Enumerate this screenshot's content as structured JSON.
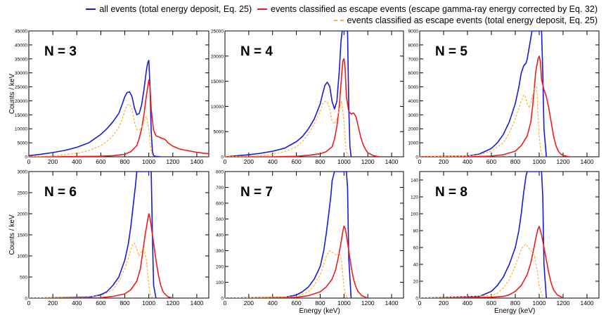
{
  "legend": {
    "all": {
      "label": "all events (total energy deposit, Eq. 25)",
      "color": "#1a1adb",
      "style": "solid"
    },
    "escape_corrected": {
      "label": "events classified as escape events (escape gamma-ray energy corrected by Eq. 32)",
      "color": "#ee1c1c",
      "style": "solid"
    },
    "escape_total": {
      "label": "events classified as escape events (total energy deposit, Eq. 25)",
      "color": "#ffb13b",
      "style": "dashed"
    }
  },
  "chart_data": [
    {
      "type": "line",
      "title": "N = 3",
      "xlabel": "",
      "ylabel": "Counts / keV",
      "xlim": [
        0,
        1500
      ],
      "ylim": [
        0,
        45000
      ],
      "xticks": [
        0,
        200,
        400,
        600,
        800,
        1000,
        1200,
        1400
      ],
      "yticks": [
        0,
        5000,
        10000,
        15000,
        20000,
        25000,
        30000,
        35000,
        40000,
        45000
      ],
      "series": [
        {
          "name": "all",
          "x": [
            0,
            100,
            200,
            300,
            400,
            500,
            600,
            650,
            700,
            750,
            780,
            800,
            820,
            840,
            860,
            880,
            900,
            920,
            940,
            960,
            980,
            990,
            1000,
            1010,
            1020,
            1030,
            1040,
            1060,
            1100
          ],
          "y": [
            400,
            900,
            1500,
            2300,
            3400,
            5000,
            8000,
            10000,
            12500,
            15500,
            19000,
            21500,
            23000,
            23200,
            21500,
            17500,
            15000,
            15500,
            18500,
            24000,
            31000,
            33500,
            34500,
            25000,
            9000,
            2000,
            400,
            100,
            0
          ]
        },
        {
          "name": "escape_corrected",
          "x": [
            0,
            200,
            400,
            600,
            700,
            800,
            850,
            900,
            920,
            940,
            960,
            980,
            1000,
            1010,
            1020,
            1040,
            1060,
            1080,
            1100,
            1120,
            1140,
            1160,
            1200,
            1250,
            1300,
            1350,
            1400,
            1450,
            1500
          ],
          "y": [
            0,
            0,
            100,
            200,
            400,
            900,
            1800,
            4000,
            6500,
            10000,
            15000,
            22000,
            27500,
            25000,
            17000,
            9500,
            7500,
            7200,
            6800,
            6500,
            6000,
            5000,
            3800,
            2900,
            2400,
            2000,
            1600,
            1300,
            1100
          ]
        },
        {
          "name": "escape_total",
          "x": [
            0,
            200,
            400,
            500,
            600,
            650,
            700,
            750,
            780,
            800,
            820,
            840,
            860,
            880,
            900,
            920,
            940,
            960,
            980,
            1000,
            1010,
            1020,
            1040
          ],
          "y": [
            0,
            300,
            1200,
            2200,
            4000,
            5500,
            7500,
            10500,
            13500,
            16500,
            18500,
            18800,
            17200,
            12500,
            9800,
            9500,
            10500,
            12500,
            14500,
            10000,
            5000,
            1500,
            100
          ]
        }
      ]
    },
    {
      "type": "line",
      "title": "N = 4",
      "xlabel": "",
      "ylabel": "",
      "xlim": [
        0,
        1500
      ],
      "ylim": [
        0,
        25000
      ],
      "xticks": [
        0,
        200,
        400,
        600,
        800,
        1000,
        1200,
        1400
      ],
      "yticks": [
        0,
        5000,
        10000,
        15000,
        20000,
        25000
      ],
      "series": [
        {
          "name": "all",
          "x": [
            0,
            100,
            200,
            300,
            400,
            500,
            600,
            650,
            700,
            750,
            800,
            820,
            840,
            860,
            880,
            900,
            920,
            940,
            960,
            975,
            985,
            990,
            1000,
            1010,
            1020,
            1030,
            1040,
            1050,
            1060
          ],
          "y": [
            0,
            200,
            400,
            700,
            1100,
            1700,
            3000,
            4000,
            5500,
            7500,
            10500,
            12500,
            14200,
            14800,
            14000,
            11000,
            9500,
            11000,
            17000,
            23000,
            25000,
            25000,
            25000,
            25000,
            25000,
            25000,
            10000,
            2000,
            0
          ]
        },
        {
          "name": "escape_corrected",
          "x": [
            0,
            400,
            600,
            700,
            800,
            850,
            900,
            920,
            940,
            960,
            980,
            990,
            1000,
            1010,
            1020,
            1040,
            1060,
            1080,
            1100,
            1120,
            1140,
            1160,
            1180,
            1200,
            1250,
            1300
          ],
          "y": [
            0,
            0,
            100,
            300,
            600,
            1000,
            2000,
            3500,
            6000,
            10000,
            16000,
            19000,
            19500,
            17500,
            12000,
            9000,
            8500,
            8700,
            8000,
            6000,
            4000,
            2500,
            1500,
            800,
            200,
            0
          ]
        },
        {
          "name": "escape_total",
          "x": [
            0,
            300,
            400,
            500,
            600,
            650,
            700,
            750,
            800,
            820,
            840,
            860,
            880,
            900,
            920,
            940,
            960,
            980,
            1000,
            1010,
            1020,
            1040
          ],
          "y": [
            0,
            200,
            500,
            1000,
            2000,
            3000,
            4500,
            6500,
            9000,
            10500,
            11000,
            11000,
            9500,
            7000,
            6500,
            7500,
            9500,
            11000,
            7000,
            3500,
            1000,
            0
          ]
        }
      ]
    },
    {
      "type": "line",
      "title": "N = 5",
      "xlabel": "",
      "ylabel": "",
      "xlim": [
        0,
        1500
      ],
      "ylim": [
        0,
        9000
      ],
      "xticks": [
        0,
        200,
        400,
        600,
        800,
        1000,
        1200,
        1400
      ],
      "yticks": [
        0,
        1000,
        2000,
        3000,
        4000,
        5000,
        6000,
        7000,
        8000,
        9000
      ],
      "series": [
        {
          "name": "all",
          "x": [
            0,
            400,
            500,
            600,
            650,
            700,
            750,
            800,
            830,
            850,
            870,
            880,
            890,
            900,
            920,
            940,
            950,
            960,
            1000,
            1020,
            1030,
            1040,
            1060
          ],
          "y": [
            0,
            50,
            200,
            600,
            1000,
            1600,
            2500,
            3800,
            5000,
            6000,
            6500,
            6600,
            6700,
            7000,
            8000,
            9000,
            9000,
            9000,
            9000,
            9000,
            6000,
            2000,
            0
          ]
        },
        {
          "name": "escape_corrected",
          "x": [
            0,
            400,
            600,
            700,
            800,
            850,
            900,
            930,
            950,
            970,
            990,
            1000,
            1010,
            1020,
            1040,
            1060,
            1080,
            1100,
            1120,
            1140,
            1160,
            1180,
            1200,
            1250
          ],
          "y": [
            0,
            0,
            50,
            150,
            400,
            800,
            1500,
            2500,
            4000,
            6000,
            7000,
            7200,
            6800,
            5500,
            4800,
            4300,
            3500,
            2500,
            1500,
            800,
            400,
            200,
            100,
            0
          ]
        },
        {
          "name": "escape_total",
          "x": [
            0,
            400,
            500,
            600,
            700,
            750,
            800,
            830,
            850,
            870,
            880,
            900,
            920,
            940,
            960,
            980,
            990,
            1000,
            1010,
            1020,
            1040
          ],
          "y": [
            0,
            50,
            150,
            400,
            1000,
            1700,
            2700,
            3500,
            4000,
            4400,
            4400,
            3800,
            3500,
            4200,
            4900,
            5000,
            3000,
            1500,
            600,
            200,
            0
          ]
        }
      ]
    },
    {
      "type": "line",
      "title": "N = 6",
      "xlabel": "",
      "ylabel": "Counts / keV",
      "xlim": [
        0,
        1500
      ],
      "ylim": [
        0,
        3000
      ],
      "xticks": [
        0,
        200,
        400,
        600,
        800,
        1000,
        1200,
        1400
      ],
      "yticks": [
        0,
        500,
        1000,
        1500,
        2000,
        2500,
        3000
      ],
      "series": [
        {
          "name": "all",
          "x": [
            0,
            500,
            600,
            650,
            700,
            750,
            800,
            830,
            850,
            870,
            890,
            900,
            920,
            940,
            960,
            1000,
            1020,
            1030,
            1040,
            1060
          ],
          "y": [
            0,
            20,
            80,
            150,
            300,
            500,
            900,
            1300,
            1700,
            2200,
            2700,
            3000,
            3000,
            3000,
            3000,
            3000,
            3000,
            1500,
            300,
            0
          ]
        },
        {
          "name": "escape_corrected",
          "x": [
            0,
            600,
            700,
            800,
            850,
            900,
            930,
            950,
            970,
            990,
            1000,
            1010,
            1020,
            1040,
            1060,
            1080,
            1100,
            1120,
            1140,
            1160,
            1200
          ],
          "y": [
            0,
            10,
            40,
            100,
            200,
            400,
            700,
            1100,
            1500,
            1850,
            2000,
            1900,
            1700,
            1300,
            900,
            550,
            300,
            150,
            80,
            30,
            0
          ]
        },
        {
          "name": "escape_total",
          "x": [
            0,
            600,
            700,
            750,
            800,
            830,
            850,
            870,
            880,
            890,
            900,
            920,
            940,
            950,
            960,
            980,
            990,
            1000,
            1010,
            1020,
            1040
          ],
          "y": [
            0,
            50,
            200,
            400,
            700,
            950,
            1150,
            1300,
            1300,
            1250,
            1150,
            1000,
            1100,
            1200,
            1150,
            900,
            600,
            300,
            100,
            40,
            0
          ]
        }
      ]
    },
    {
      "type": "line",
      "title": "N = 7",
      "xlabel": "Energy (keV)",
      "ylabel": "",
      "xlim": [
        0,
        1500
      ],
      "ylim": [
        0,
        800
      ],
      "xticks": [
        0,
        200,
        400,
        600,
        800,
        1000,
        1200,
        1400
      ],
      "yticks": [
        0,
        100,
        200,
        300,
        400,
        500,
        600,
        700,
        800
      ],
      "series": [
        {
          "name": "all",
          "x": [
            0,
            500,
            600,
            650,
            700,
            750,
            800,
            830,
            850,
            870,
            890,
            900,
            920,
            950,
            980,
            1000,
            1020,
            1030,
            1040,
            1060
          ],
          "y": [
            0,
            5,
            20,
            40,
            70,
            120,
            200,
            300,
            400,
            520,
            650,
            740,
            800,
            800,
            800,
            800,
            800,
            700,
            250,
            0
          ]
        },
        {
          "name": "escape_corrected",
          "x": [
            0,
            600,
            700,
            800,
            850,
            900,
            930,
            950,
            970,
            990,
            1000,
            1010,
            1020,
            1040,
            1060,
            1080,
            1100,
            1120,
            1150,
            1200
          ],
          "y": [
            0,
            5,
            15,
            40,
            70,
            120,
            180,
            250,
            330,
            420,
            455,
            440,
            400,
            300,
            200,
            120,
            70,
            40,
            15,
            0
          ]
        },
        {
          "name": "escape_total",
          "x": [
            0,
            600,
            700,
            750,
            800,
            830,
            850,
            870,
            880,
            900,
            920,
            940,
            960,
            970,
            980,
            990,
            1000,
            1010,
            1020,
            1040
          ],
          "y": [
            0,
            10,
            40,
            80,
            150,
            210,
            260,
            290,
            300,
            290,
            280,
            270,
            285,
            270,
            230,
            150,
            70,
            30,
            10,
            0
          ]
        }
      ]
    },
    {
      "type": "line",
      "title": "N = 8",
      "xlabel": "Energy (keV)",
      "ylabel": "",
      "xlim": [
        0,
        1500
      ],
      "ylim": [
        0,
        150
      ],
      "xticks": [
        0,
        200,
        400,
        600,
        800,
        1000,
        1200,
        1400
      ],
      "yticks": [
        0,
        20,
        40,
        60,
        80,
        100,
        120,
        140
      ],
      "series": [
        {
          "name": "all",
          "x": [
            0,
            500,
            600,
            650,
            700,
            750,
            800,
            830,
            850,
            870,
            890,
            900,
            920,
            950,
            980,
            1000,
            1020,
            1030,
            1040,
            1060
          ],
          "y": [
            0,
            2,
            8,
            15,
            25,
            40,
            60,
            80,
            100,
            125,
            145,
            150,
            150,
            150,
            150,
            150,
            150,
            120,
            40,
            0
          ]
        },
        {
          "name": "escape_corrected",
          "x": [
            0,
            600,
            700,
            750,
            800,
            850,
            900,
            930,
            950,
            970,
            990,
            1000,
            1010,
            1020,
            1040,
            1060,
            1080,
            1100,
            1120,
            1150,
            1200
          ],
          "y": [
            0,
            1,
            2,
            4,
            8,
            15,
            28,
            42,
            55,
            70,
            82,
            85,
            80,
            75,
            60,
            45,
            30,
            18,
            10,
            4,
            0
          ]
        },
        {
          "name": "escape_total",
          "x": [
            0,
            600,
            650,
            700,
            750,
            800,
            830,
            850,
            870,
            890,
            900,
            920,
            940,
            960,
            980,
            1000,
            1020,
            1040
          ],
          "y": [
            0,
            3,
            6,
            12,
            22,
            38,
            50,
            58,
            62,
            64,
            62,
            58,
            55,
            50,
            35,
            15,
            5,
            0
          ]
        }
      ]
    }
  ]
}
